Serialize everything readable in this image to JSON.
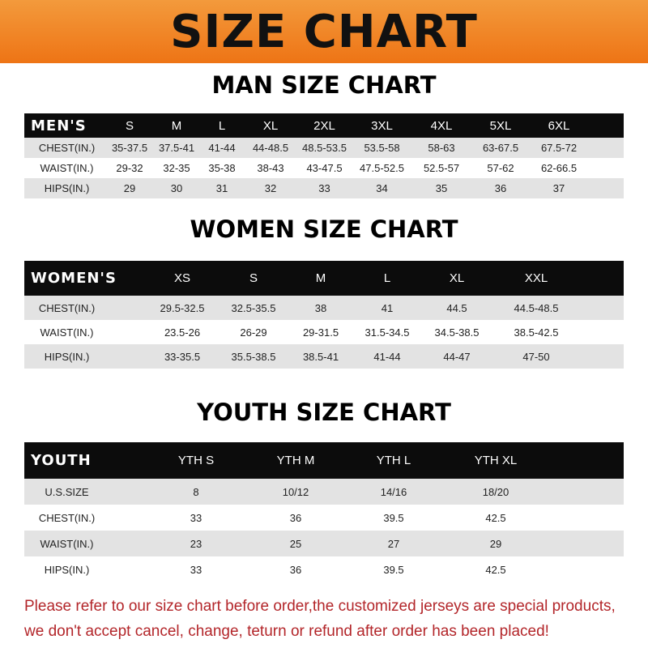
{
  "banner": {
    "title": "SIZE CHART",
    "color": "#ee7415"
  },
  "men": {
    "title": "MAN SIZE CHART",
    "header": "MEN'S",
    "sizes": [
      "S",
      "M",
      "L",
      "XL",
      "2XL",
      "3XL",
      "4XL",
      "5XL",
      "6XL"
    ],
    "rows": [
      {
        "label": "CHEST(IN.)",
        "values": [
          "35-37.5",
          "37.5-41",
          "41-44",
          "44-48.5",
          "48.5-53.5",
          "53.5-58",
          "58-63",
          "63-67.5",
          "67.5-72"
        ]
      },
      {
        "label": "WAIST(IN.)",
        "values": [
          "29-32",
          "32-35",
          "35-38",
          "38-43",
          "43-47.5",
          "47.5-52.5",
          "52.5-57",
          "57-62",
          "62-66.5"
        ]
      },
      {
        "label": "HIPS(IN.)",
        "values": [
          "29",
          "30",
          "31",
          "32",
          "33",
          "34",
          "35",
          "36",
          "37"
        ]
      }
    ]
  },
  "women": {
    "title": "WOMEN SIZE CHART",
    "header": "WOMEN'S",
    "sizes": [
      "XS",
      "S",
      "M",
      "L",
      "XL",
      "XXL"
    ],
    "rows": [
      {
        "label": "CHEST(IN.)",
        "values": [
          "29.5-32.5",
          "32.5-35.5",
          "38",
          "41",
          "44.5",
          "44.5-48.5"
        ]
      },
      {
        "label": "WAIST(IN.)",
        "values": [
          "23.5-26",
          "26-29",
          "29-31.5",
          "31.5-34.5",
          "34.5-38.5",
          "38.5-42.5"
        ]
      },
      {
        "label": "HIPS(IN.)",
        "values": [
          "33-35.5",
          "35.5-38.5",
          "38.5-41",
          "41-44",
          "44-47",
          "47-50"
        ]
      }
    ]
  },
  "youth": {
    "title": "YOUTH SIZE CHART",
    "header": "YOUTH",
    "sizes": [
      "YTH S",
      "YTH M",
      "YTH L",
      "YTH XL"
    ],
    "rows": [
      {
        "label": "U.S.SIZE",
        "values": [
          "8",
          "10/12",
          "14/16",
          "18/20"
        ]
      },
      {
        "label": "CHEST(IN.)",
        "values": [
          "33",
          "36",
          "39.5",
          "42.5"
        ]
      },
      {
        "label": "WAIST(IN.)",
        "values": [
          "23",
          "25",
          "27",
          "29"
        ]
      },
      {
        "label": "HIPS(IN.)",
        "values": [
          "33",
          "36",
          "39.5",
          "42.5"
        ]
      }
    ]
  },
  "note": {
    "line1": "Please refer to our size chart before order,the customized jerseys are special products,",
    "line2": "we don't accept cancel, change, teturn or refund after order has been placed!",
    "color": "#b3262a"
  }
}
